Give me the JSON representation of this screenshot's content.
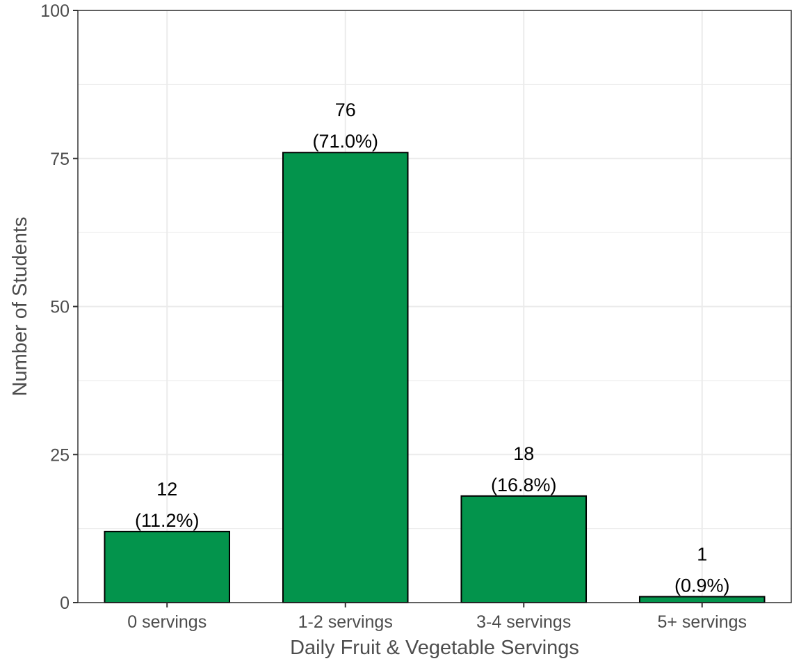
{
  "chart_data": {
    "type": "bar",
    "title": "",
    "xlabel": "Daily Fruit & Vegetable Servings",
    "ylabel": "Number of Students",
    "categories": [
      "0 servings",
      "1-2 servings",
      "3-4 servings",
      "5+ servings"
    ],
    "values": [
      12,
      76,
      18,
      1
    ],
    "value_labels": [
      "12",
      "76",
      "18",
      "1"
    ],
    "percent_labels": [
      "(11.2%)",
      "(71.0%)",
      "(16.8%)",
      "(0.9%)"
    ],
    "ylim": [
      0,
      100
    ],
    "yticks": [
      0,
      25,
      50,
      75,
      100
    ],
    "ytick_labels": [
      "0",
      "25",
      "50",
      "75",
      "100"
    ],
    "grid": true,
    "legend": "none",
    "colors": {
      "bar_fill": "#03944c",
      "bar_outline": "#000000",
      "grid": "#ebebeb",
      "panel_border": "#333333",
      "axis_text": "#4d4d4d"
    }
  }
}
